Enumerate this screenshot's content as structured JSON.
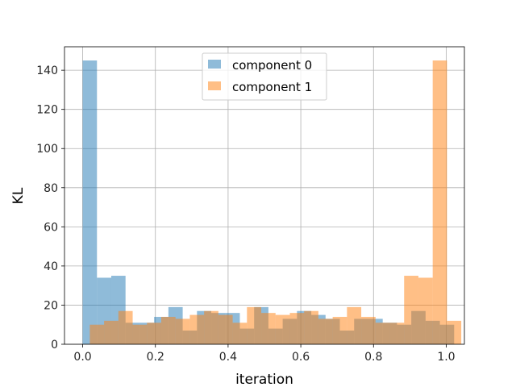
{
  "chart_data": {
    "type": "bar",
    "subtype": "overlaid-histogram",
    "xlabel": "iteration",
    "ylabel": "KL",
    "xlim": [
      -0.05,
      1.05
    ],
    "ylim": [
      0,
      152
    ],
    "xticks": [
      "0.0",
      "0.2",
      "0.4",
      "0.6",
      "0.8",
      "1.0"
    ],
    "yticks": [
      "0",
      "20",
      "40",
      "60",
      "80",
      "100",
      "120",
      "140"
    ],
    "grid": true,
    "legend_position": "top-center",
    "series": [
      {
        "name": "component 0",
        "color": "#1f77b4",
        "opacity": 0.5,
        "bin_start": 0.0,
        "bin_width": 0.0393,
        "values": [
          145,
          34,
          35,
          11,
          11,
          14,
          19,
          7,
          17,
          16,
          16,
          8,
          19,
          8,
          13,
          17,
          15,
          13,
          7,
          13,
          13,
          11,
          10,
          17,
          12,
          10
        ]
      },
      {
        "name": "component 1",
        "color": "#ff7f0e",
        "opacity": 0.5,
        "bin_start": 0.0196,
        "bin_width": 0.0393,
        "values": [
          10,
          12,
          17,
          10,
          11,
          14,
          13,
          15,
          17,
          15,
          11,
          19,
          16,
          15,
          16,
          17,
          13,
          14,
          19,
          14,
          11,
          11,
          35,
          34,
          145,
          12
        ]
      }
    ]
  }
}
